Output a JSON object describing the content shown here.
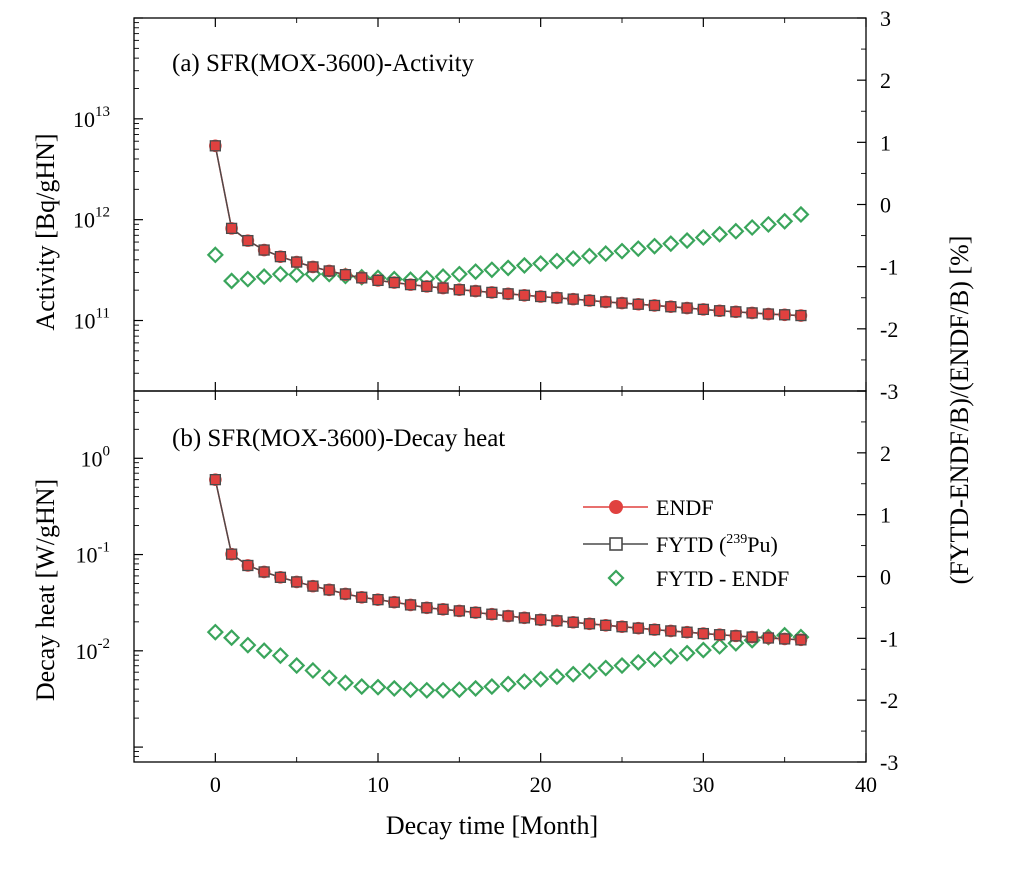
{
  "chart_data": [
    {
      "type": "line",
      "panel": "a",
      "title": "(a) SFR(MOX-3600)-Activity",
      "xlabel": "Decay time [Month]",
      "ylabel": "Activity [Bq/gHN]",
      "yscale": "log",
      "ylim": [
        20000000000,
        100000000000000
      ],
      "y_ticks": [
        {
          "value": 100000000000,
          "base": "10",
          "exp": "11"
        },
        {
          "value": 1000000000000,
          "base": "10",
          "exp": "12"
        },
        {
          "value": 10000000000000,
          "base": "10",
          "exp": "13"
        }
      ],
      "y2label": "(FYTD-ENDF/B)/(ENDF/B)  [%]",
      "y2lim": [
        -3,
        3
      ],
      "y2_ticks": [
        "-3",
        "-2",
        "-1",
        "0",
        "1",
        "2",
        "3"
      ],
      "x": [
        0,
        1,
        2,
        3,
        4,
        5,
        6,
        7,
        8,
        9,
        10,
        11,
        12,
        13,
        14,
        15,
        16,
        17,
        18,
        19,
        20,
        21,
        22,
        23,
        24,
        25,
        26,
        27,
        28,
        29,
        30,
        31,
        32,
        33,
        34,
        35,
        36
      ],
      "series": [
        {
          "name": "ENDF",
          "axis": "left",
          "values": [
            5400000000000.0,
            820000000000.0,
            620000000000.0,
            500000000000.0,
            430000000000.0,
            380000000000.0,
            340000000000.0,
            310000000000.0,
            285000000000.0,
            265000000000.0,
            250000000000.0,
            238000000000.0,
            227000000000.0,
            218000000000.0,
            210000000000.0,
            202000000000.0,
            196000000000.0,
            190000000000.0,
            184000000000.0,
            178000000000.0,
            173000000000.0,
            168000000000.0,
            163000000000.0,
            158000000000.0,
            153000000000.0,
            149000000000.0,
            145000000000.0,
            141000000000.0,
            137000000000.0,
            133000000000.0,
            129000000000.0,
            125000000000.0,
            122000000000.0,
            119000000000.0,
            116000000000.0,
            114000000000.0,
            112000000000.0
          ]
        },
        {
          "name": "FYTD (239Pu)",
          "axis": "left",
          "values": [
            5400000000000.0,
            820000000000.0,
            620000000000.0,
            500000000000.0,
            430000000000.0,
            380000000000.0,
            340000000000.0,
            310000000000.0,
            285000000000.0,
            265000000000.0,
            250000000000.0,
            238000000000.0,
            227000000000.0,
            218000000000.0,
            210000000000.0,
            202000000000.0,
            196000000000.0,
            190000000000.0,
            184000000000.0,
            178000000000.0,
            173000000000.0,
            168000000000.0,
            163000000000.0,
            158000000000.0,
            153000000000.0,
            149000000000.0,
            145000000000.0,
            141000000000.0,
            137000000000.0,
            133000000000.0,
            129000000000.0,
            125000000000.0,
            122000000000.0,
            119000000000.0,
            116000000000.0,
            114000000000.0,
            112000000000.0
          ]
        },
        {
          "name": "FYTD - ENDF",
          "axis": "right",
          "values": [
            -0.81,
            -1.23,
            -1.2,
            -1.16,
            -1.12,
            -1.13,
            -1.12,
            -1.12,
            -1.15,
            -1.17,
            -1.18,
            -1.2,
            -1.21,
            -1.19,
            -1.16,
            -1.12,
            -1.08,
            -1.05,
            -1.02,
            -0.98,
            -0.95,
            -0.91,
            -0.87,
            -0.83,
            -0.79,
            -0.75,
            -0.71,
            -0.67,
            -0.63,
            -0.58,
            -0.53,
            -0.48,
            -0.43,
            -0.37,
            -0.32,
            -0.27,
            -0.16
          ]
        }
      ]
    },
    {
      "type": "line",
      "panel": "b",
      "title": "(b) SFR(MOX-3600)-Decay heat",
      "xlabel": "Decay time [Month]",
      "ylabel": "Decay heat [W/gHN]",
      "yscale": "log",
      "ylim": [
        0.0007,
        5
      ],
      "y_ticks": [
        {
          "value": 0.01,
          "base": "10",
          "exp": "-2"
        },
        {
          "value": 0.1,
          "base": "10",
          "exp": "-1"
        },
        {
          "value": 1,
          "base": "10",
          "exp": "0"
        }
      ],
      "y2label": "(FYTD-ENDF/B)/(ENDF/B)  [%]",
      "y2lim": [
        -3,
        3
      ],
      "y2_ticks": [
        "-3",
        "-2",
        "-1",
        "0",
        "1",
        "2",
        "3"
      ],
      "x": [
        0,
        1,
        2,
        3,
        4,
        5,
        6,
        7,
        8,
        9,
        10,
        11,
        12,
        13,
        14,
        15,
        16,
        17,
        18,
        19,
        20,
        21,
        22,
        23,
        24,
        25,
        26,
        27,
        28,
        29,
        30,
        31,
        32,
        33,
        34,
        35,
        36
      ],
      "xlim": [
        -5,
        40
      ],
      "x_ticks": [
        "0",
        "10",
        "20",
        "30",
        "40"
      ],
      "series": [
        {
          "name": "ENDF",
          "axis": "left",
          "values": [
            0.6,
            0.101,
            0.077,
            0.066,
            0.058,
            0.052,
            0.047,
            0.043,
            0.039,
            0.036,
            0.034,
            0.032,
            0.03,
            0.028,
            0.027,
            0.026,
            0.025,
            0.024,
            0.023,
            0.022,
            0.021,
            0.0205,
            0.0198,
            0.0191,
            0.0184,
            0.0178,
            0.0172,
            0.0166,
            0.0161,
            0.0156,
            0.0151,
            0.0147,
            0.0143,
            0.0139,
            0.0136,
            0.0133,
            0.013
          ]
        },
        {
          "name": "FYTD (239Pu)",
          "axis": "left",
          "values": [
            0.6,
            0.101,
            0.077,
            0.066,
            0.058,
            0.052,
            0.047,
            0.043,
            0.039,
            0.036,
            0.034,
            0.032,
            0.03,
            0.028,
            0.027,
            0.026,
            0.025,
            0.024,
            0.023,
            0.022,
            0.021,
            0.0205,
            0.0198,
            0.0191,
            0.0184,
            0.0178,
            0.0172,
            0.0166,
            0.0161,
            0.0156,
            0.0151,
            0.0147,
            0.0143,
            0.0139,
            0.0136,
            0.0133,
            0.013
          ]
        },
        {
          "name": "FYTD - ENDF",
          "axis": "right",
          "values": [
            -0.9,
            -0.99,
            -1.11,
            -1.2,
            -1.28,
            -1.44,
            -1.52,
            -1.64,
            -1.72,
            -1.78,
            -1.79,
            -1.81,
            -1.83,
            -1.84,
            -1.84,
            -1.83,
            -1.81,
            -1.78,
            -1.74,
            -1.7,
            -1.66,
            -1.62,
            -1.58,
            -1.53,
            -1.48,
            -1.44,
            -1.39,
            -1.34,
            -1.29,
            -1.24,
            -1.19,
            -1.13,
            -1.08,
            -1.03,
            -0.98,
            -0.95,
            -0.98
          ]
        }
      ]
    }
  ],
  "legend": {
    "position": "inside panel b, center-right",
    "entries": [
      {
        "label": "ENDF",
        "marker": "filled-circle-line",
        "color": "#e0413f"
      },
      {
        "label": "FYTD (",
        "sup": "239",
        "label_end": "Pu)",
        "marker": "open-square-line",
        "color": "#4a4a4a"
      },
      {
        "label": "FYTD - ENDF",
        "marker": "open-diamond",
        "color": "#3aa55c"
      }
    ]
  },
  "colors": {
    "endf": "#e0413f",
    "fytd": "#4a4a4a",
    "diff": "#3aa55c"
  }
}
